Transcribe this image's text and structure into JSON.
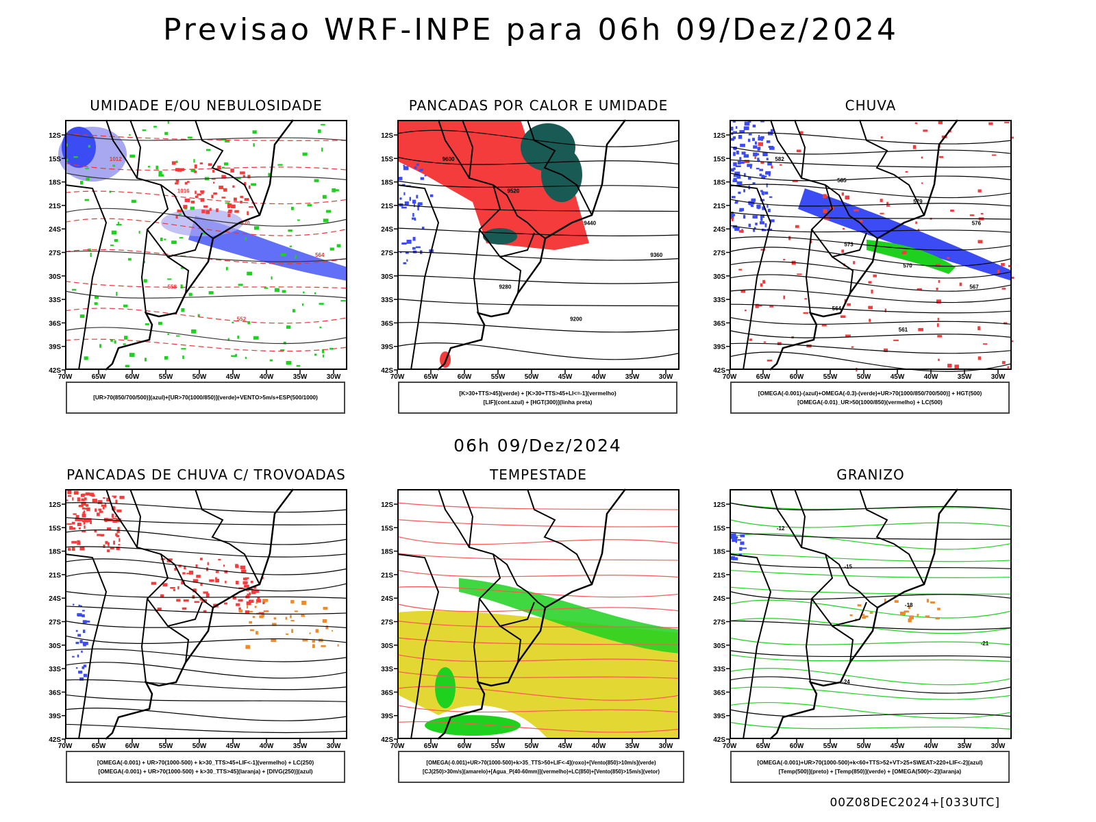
{
  "header": {
    "title": "Previsao WRF-INPE  para 06h 09/Dez/2024"
  },
  "mid_title": "06h 09/Dez/2024",
  "footer": "00Z08DEC2024+[033UTC]",
  "axes": {
    "lat_labels": [
      "12S",
      "15S",
      "18S",
      "21S",
      "24S",
      "27S",
      "30S",
      "33S",
      "36S",
      "39S",
      "42S"
    ],
    "lon_labels": [
      "70W",
      "65W",
      "60W",
      "55W",
      "50W",
      "45W",
      "40W",
      "35W",
      "30W"
    ]
  },
  "colors": {
    "blue": "#3b4cf5",
    "light_blue": "#a8a8f0",
    "green": "#1fd11f",
    "red": "#f53c3c",
    "dark_teal": "#1a5a55",
    "yellow": "#e3d733",
    "orange": "#f08a28"
  },
  "panels": [
    {
      "title": "UMIDADE E/OU NEBULOSIDADE",
      "legend": [
        "[UR>70(850/700/500)](azul)+[UR>70(1000/850)](verde)+VENTO>5m/s+ESP(500/1000)"
      ],
      "contour_labels": [
        "1012",
        "1016",
        "570",
        "564",
        "558",
        "552"
      ]
    },
    {
      "title": "PANCADAS POR CALOR E UMIDADE",
      "legend": [
        "[K>30+TTS>45](verde) + [K>30+TTS>45+LI<=-1](vermelho)",
        "[LIF](cont.azul) + [HGT(300)](linha preta)"
      ],
      "contour_labels": [
        "9600",
        "9520",
        "9440",
        "9360",
        "9280",
        "9200"
      ]
    },
    {
      "title": "CHUVA",
      "legend": [
        "[OMEGA(-0.001)-(azul)+OMEGA(-0.3)-(verde)+UR>70(1000/850/700/500)] + HGT(500)",
        "[OMEGA(-0.01)_UR>50(1000/850)(vermelho) + LC(500)"
      ],
      "contour_labels": [
        "582",
        "585",
        "579",
        "576",
        "573",
        "570",
        "567",
        "564",
        "561"
      ]
    },
    {
      "title": "PANCADAS DE CHUVA C/ TROVOADAS",
      "legend": [
        "[OMEGA(-0.001) + UR>70(1000-500) + k>30_TTS>45+LIF<-1](vermelho) + LC(250)",
        "[OMEGA(-0.001) + UR>70(1000-500) + k>30_TTS>45](laranja) + [DIVG(250)](azul)"
      ],
      "contour_labels": []
    },
    {
      "title": "TEMPESTADE",
      "legend": [
        "[OMEGA(-0.001)+UR>70(1000-500)+k>35_TTS>50+LIF<-4](roxo)+[Vento(850)>10m/s](verde)",
        "[CJ(250)>30m/s](amarelo)+[Agua_P(40-60mm)](vermelho)+LC(850)+[Vento(850)>15m/s](vetor)"
      ],
      "contour_labels": []
    },
    {
      "title": "GRANIZO",
      "legend": [
        "[OMEGA(-0.001)+UR>70(1000-500)+k<60+TTS>52+VT>25+SWEAT>220+LIF<-2](azul)",
        "[Temp(500)](preto) + [Temp(850)](verde) + [OMEGA(500)<-2](laranja)"
      ],
      "contour_labels": [
        "-12",
        "-15",
        "-18",
        "-21",
        "-24"
      ]
    }
  ]
}
